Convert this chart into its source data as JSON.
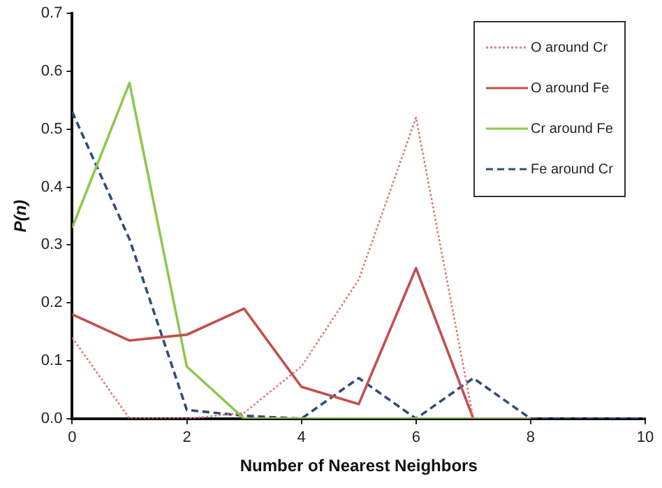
{
  "chart_data": {
    "type": "line",
    "xlabel": "Number of Nearest Neighbors",
    "ylabel": "P(n)",
    "series": [
      {
        "name": "O around Cr",
        "color": "#e07a7a",
        "line_style": "dotted",
        "x": [
          0,
          1,
          2,
          3,
          4,
          5,
          6,
          7,
          8
        ],
        "values": [
          0.14,
          0,
          0,
          0.01,
          0.09,
          0.24,
          0.52,
          0,
          0
        ]
      },
      {
        "name": "O around Fe",
        "color": "#c0504d",
        "line_style": "solid",
        "x": [
          0,
          1,
          2,
          3,
          4,
          5,
          6,
          7
        ],
        "values": [
          0.18,
          0.135,
          0.145,
          0.19,
          0.055,
          0.025,
          0.26,
          0
        ]
      },
      {
        "name": "Cr around Fe",
        "color": "#8cc850",
        "line_style": "solid",
        "x": [
          0,
          1,
          2,
          3,
          4,
          5,
          6,
          7,
          8
        ],
        "values": [
          0.33,
          0.58,
          0.09,
          0,
          0,
          0,
          0,
          0,
          0
        ]
      },
      {
        "name": "Fe around Cr",
        "color": "#2e4d7a",
        "line_style": "dashed",
        "x": [
          0,
          1,
          2,
          3,
          4,
          5,
          6,
          7,
          8,
          9,
          10
        ],
        "values": [
          0.53,
          0.31,
          0.015,
          0.005,
          0,
          0.07,
          0,
          0.07,
          0,
          0,
          0
        ]
      }
    ],
    "xlim": [
      0,
      10
    ],
    "xticks": [
      0,
      2,
      4,
      6,
      8,
      10
    ],
    "ylim": [
      0,
      0.7
    ],
    "yticks": [
      {
        "value": 0,
        "label": "0.0"
      },
      0.1,
      0.2,
      0.3,
      0.4,
      0.5,
      0.6,
      0.7
    ],
    "grid": false,
    "legend": "top right",
    "marker": "none"
  }
}
